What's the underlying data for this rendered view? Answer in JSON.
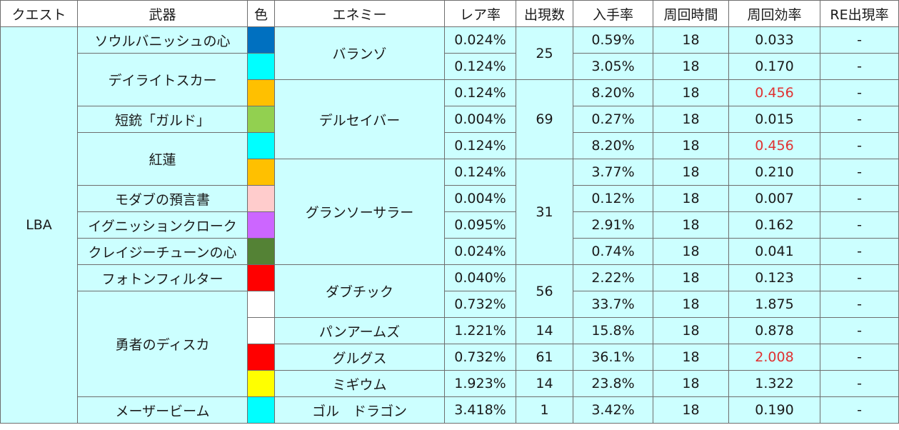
{
  "headers": [
    "クエスト",
    "武器",
    "色",
    "エネミー",
    "レア率",
    "出現数",
    "入手率",
    "周回時間",
    "周回効率",
    "RE出現率"
  ],
  "quest": "LBA",
  "weapons": [
    {
      "name": "ソウルバニッシュの心",
      "rowspan": 1
    },
    {
      "name": "デイライトスカー",
      "rowspan": 2
    },
    {
      "name": "短銃「ガルド」",
      "rowspan": 1
    },
    {
      "name": "紅蓮",
      "rowspan": 2
    },
    {
      "name": "モダブの預言書",
      "rowspan": 1
    },
    {
      "name": "イグニッションクローク",
      "rowspan": 1
    },
    {
      "name": "クレイジーチューンの心",
      "rowspan": 1
    },
    {
      "name": "フォトンフィルター",
      "rowspan": 1
    },
    {
      "name": "勇者のディスカ",
      "rowspan": 4
    },
    {
      "name": "メーザービーム",
      "rowspan": 1
    }
  ],
  "enemies": [
    {
      "name": "バランゾ",
      "rowspan": 2
    },
    {
      "name": "デルセイバー",
      "rowspan": 3
    },
    {
      "name": "グランソーサラー",
      "rowspan": 4
    },
    {
      "name": "ダブチック",
      "rowspan": 2
    },
    {
      "name": "パンアームズ",
      "rowspan": 1
    },
    {
      "name": "グルグス",
      "rowspan": 1
    },
    {
      "name": "ミギウム",
      "rowspan": 1
    },
    {
      "name": "ゴル　ドラゴン",
      "rowspan": 1
    }
  ],
  "counts": [
    {
      "value": "25",
      "rowspan": 2
    },
    {
      "value": "69",
      "rowspan": 3
    },
    {
      "value": "31",
      "rowspan": 4
    },
    {
      "value": "56",
      "rowspan": 2
    },
    {
      "value": "14",
      "rowspan": 1
    },
    {
      "value": "61",
      "rowspan": 1
    },
    {
      "value": "14",
      "rowspan": 1
    },
    {
      "value": "1",
      "rowspan": 1
    }
  ],
  "rows": [
    {
      "color": "#0070c0",
      "rare": "0.024%",
      "drop": "0.59%",
      "time": "18",
      "eff": "0.033",
      "eff_red": false,
      "re": "-"
    },
    {
      "color": "#00ffff",
      "rare": "0.124%",
      "drop": "3.05%",
      "time": "18",
      "eff": "0.170",
      "eff_red": false,
      "re": "-"
    },
    {
      "color": "#ffc000",
      "rare": "0.124%",
      "drop": "8.20%",
      "time": "18",
      "eff": "0.456",
      "eff_red": true,
      "re": "-"
    },
    {
      "color": "#92d050",
      "rare": "0.004%",
      "drop": "0.27%",
      "time": "18",
      "eff": "0.015",
      "eff_red": false,
      "re": "-"
    },
    {
      "color": "#00ffff",
      "rare": "0.124%",
      "drop": "8.20%",
      "time": "18",
      "eff": "0.456",
      "eff_red": true,
      "re": "-"
    },
    {
      "color": "#ffc000",
      "rare": "0.124%",
      "drop": "3.77%",
      "time": "18",
      "eff": "0.210",
      "eff_red": false,
      "re": "-"
    },
    {
      "color": "#ffcccc",
      "rare": "0.004%",
      "drop": "0.12%",
      "time": "18",
      "eff": "0.007",
      "eff_red": false,
      "re": "-"
    },
    {
      "color": "#cc66ff",
      "rare": "0.095%",
      "drop": "2.91%",
      "time": "18",
      "eff": "0.162",
      "eff_red": false,
      "re": "-"
    },
    {
      "color": "#548235",
      "rare": "0.024%",
      "drop": "0.74%",
      "time": "18",
      "eff": "0.041",
      "eff_red": false,
      "re": "-"
    },
    {
      "color": "#ff0000",
      "rare": "0.040%",
      "drop": "2.22%",
      "time": "18",
      "eff": "0.123",
      "eff_red": false,
      "re": "-"
    },
    {
      "color": "#ffffff",
      "rare": "0.732%",
      "drop": "33.7%",
      "time": "18",
      "eff": "1.875",
      "eff_red": false,
      "re": "-"
    },
    {
      "color": "#ffffff",
      "rare": "1.221%",
      "drop": "15.8%",
      "time": "18",
      "eff": "0.878",
      "eff_red": false,
      "re": "-"
    },
    {
      "color": "#ff0000",
      "rare": "0.732%",
      "drop": "36.1%",
      "time": "18",
      "eff": "2.008",
      "eff_red": true,
      "re": "-"
    },
    {
      "color": "#ffff00",
      "rare": "1.923%",
      "drop": "23.8%",
      "time": "18",
      "eff": "1.322",
      "eff_red": false,
      "re": "-"
    },
    {
      "color": "#00ffff",
      "rare": "3.418%",
      "drop": "3.42%",
      "time": "18",
      "eff": "0.190",
      "eff_red": false,
      "re": "-"
    }
  ]
}
